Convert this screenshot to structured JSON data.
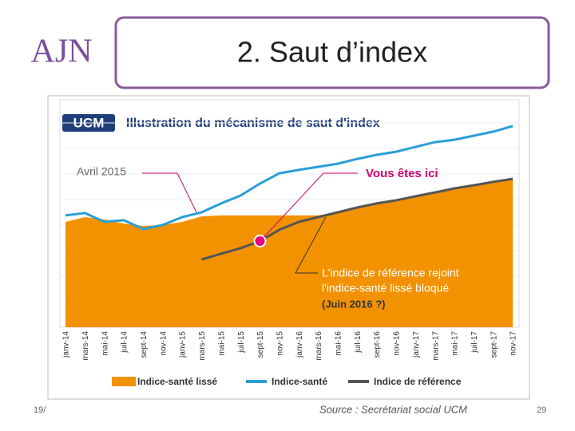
{
  "slide": {
    "logo": "AJN",
    "title": "2. Saut d’index",
    "footer_left": "19/",
    "page_number": "29"
  },
  "chart_data": {
    "type": "line",
    "brand": "UCM",
    "title": "Illustration du mécanisme de saut d'index",
    "categories": [
      "janv-14",
      "mars-14",
      "mai-14",
      "juil-14",
      "sept-14",
      "nov-14",
      "janv-15",
      "mars-15",
      "mai-15",
      "juil-15",
      "sept-15",
      "nov-15",
      "janv-16",
      "mars-16",
      "mai-16",
      "juil-16",
      "sept-16",
      "nov-16",
      "janv-17",
      "mars-17",
      "mai-17",
      "juil-17",
      "sept-17",
      "nov-17"
    ],
    "series": [
      {
        "name": "Indice-santé lissé",
        "kind": "area",
        "color": "#f39200",
        "values": [
          4.4,
          4.6,
          4.5,
          4.33,
          4.23,
          4.27,
          4.4,
          4.63,
          4.67,
          4.67,
          4.67,
          4.67,
          4.67,
          4.67,
          4.8,
          5.0,
          5.17,
          5.3,
          5.47,
          5.63,
          5.8,
          5.93,
          6.07,
          6.2
        ]
      },
      {
        "name": "Indice-santé",
        "kind": "line",
        "color": "#2a9fd6",
        "values": [
          4.67,
          4.77,
          4.4,
          4.47,
          4.1,
          4.27,
          4.6,
          4.8,
          5.17,
          5.5,
          6.0,
          6.43,
          6.57,
          6.7,
          6.83,
          7.03,
          7.2,
          7.33,
          7.53,
          7.73,
          7.83,
          8.0,
          8.17,
          8.4
        ]
      },
      {
        "name": "Indice de référence",
        "kind": "line",
        "color": "#555555",
        "values": [
          null,
          null,
          null,
          null,
          null,
          null,
          null,
          2.83,
          3.07,
          3.3,
          3.6,
          4.07,
          4.4,
          4.6,
          4.8,
          5.0,
          5.17,
          5.3,
          5.47,
          5.63,
          5.8,
          5.93,
          6.07,
          6.2
        ]
      }
    ],
    "ylim": [
      0,
      9.5
    ],
    "annotations": [
      "Avril 2015",
      "Vous êtes ici",
      "L'indice de référence rejoint",
      "l'indice-santé lissé bloqué",
      "(Juin 2016 ?)"
    ],
    "source": "Source : Secrétariat social UCM"
  }
}
